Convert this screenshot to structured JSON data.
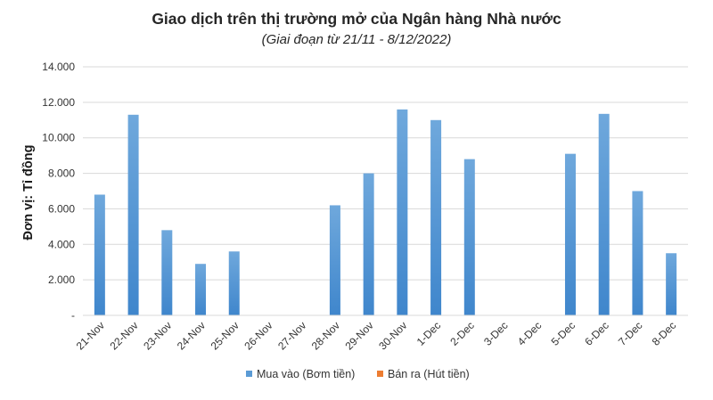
{
  "chart_data": {
    "type": "bar",
    "title": "Giao dịch trên thị trường mở của Ngân hàng Nhà nước",
    "subtitle": "(Giai đoạn từ 21/11 - 8/12/2022)",
    "xlabel": "",
    "ylabel": "Đơn vị: Tỉ đồng",
    "ylim": [
      0,
      14000
    ],
    "yticks": [
      {
        "value": 0,
        "label": "-"
      },
      {
        "value": 2000,
        "label": "2.000"
      },
      {
        "value": 4000,
        "label": "4.000"
      },
      {
        "value": 6000,
        "label": "6.000"
      },
      {
        "value": 8000,
        "label": "8.000"
      },
      {
        "value": 10000,
        "label": "10.000"
      },
      {
        "value": 12000,
        "label": "12.000"
      },
      {
        "value": 14000,
        "label": "14.000"
      }
    ],
    "categories": [
      "21-Nov",
      "22-Nov",
      "23-Nov",
      "24-Nov",
      "25-Nov",
      "26-Nov",
      "27-Nov",
      "28-Nov",
      "29-Nov",
      "30-Nov",
      "1-Dec",
      "2-Dec",
      "3-Dec",
      "4-Dec",
      "5-Dec",
      "6-Dec",
      "7-Dec",
      "8-Dec"
    ],
    "series": [
      {
        "name": "Mua vào (Bơm tiền)",
        "color": "#5b9bd5",
        "values": [
          6800,
          11300,
          4800,
          2900,
          3600,
          0,
          0,
          6200,
          8000,
          11600,
          11000,
          8800,
          0,
          0,
          9100,
          11350,
          7000,
          3500
        ]
      },
      {
        "name": "Bán ra (Hút tiền)",
        "color": "#ed7d31",
        "values": [
          0,
          0,
          0,
          0,
          0,
          0,
          0,
          0,
          0,
          0,
          0,
          0,
          0,
          0,
          0,
          0,
          0,
          0
        ]
      }
    ],
    "grid": true,
    "legend": "bottom"
  }
}
